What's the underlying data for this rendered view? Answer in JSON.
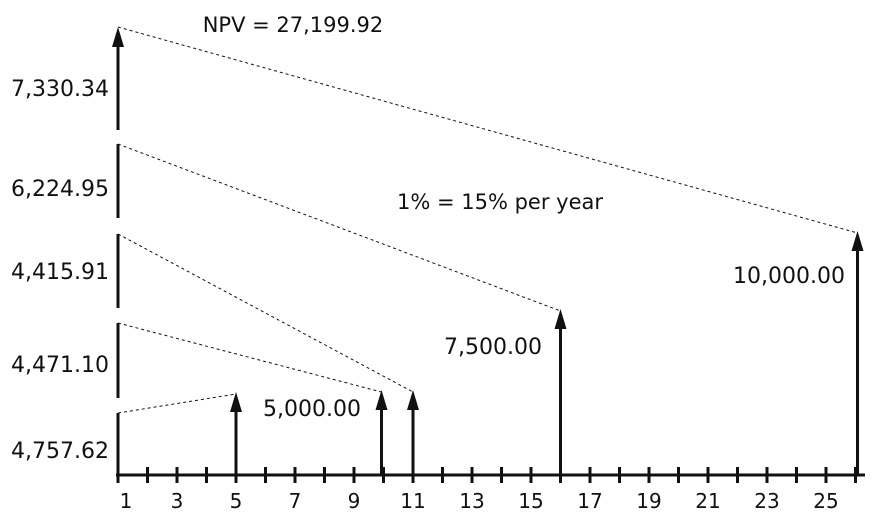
{
  "title": "NPV = 27,199.92",
  "rate_note": "1% = 15% per year",
  "axis": {
    "min": 1,
    "max": 25,
    "tick_labels": [
      "1",
      "3",
      "5",
      "7",
      "9",
      "11",
      "13",
      "15",
      "17",
      "19",
      "21",
      "23",
      "25"
    ]
  },
  "present_values": [
    {
      "label": "7,330.34",
      "arrow": true
    },
    {
      "label": "6,224.95",
      "arrow": false
    },
    {
      "label": "4,415.91",
      "arrow": false
    },
    {
      "label": "4,471.10",
      "arrow": false
    },
    {
      "label": "4,757.62",
      "arrow": false
    }
  ],
  "cash_flows": [
    {
      "period": 5,
      "label": "",
      "discounts_to": "4,757.62"
    },
    {
      "period": 10,
      "label": "5,000.00",
      "discounts_to": "4,471.10"
    },
    {
      "period": 11,
      "label": "",
      "discounts_to": "4,415.91"
    },
    {
      "period": 16,
      "label": "7,500.00",
      "discounts_to": "6,224.95"
    },
    {
      "period": 26,
      "label": "10,000.00",
      "discounts_to": "7,330.34"
    }
  ],
  "colors": {
    "ink": "#111111",
    "background": "#ffffff"
  }
}
